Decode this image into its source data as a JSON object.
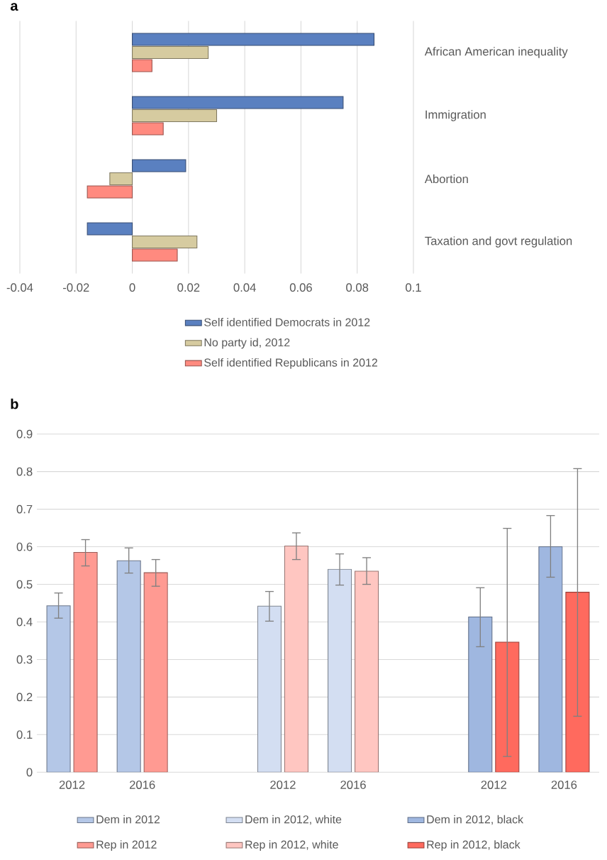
{
  "chart_data": [
    {
      "type": "bar",
      "title": "a",
      "orientation": "horizontal",
      "categories": [
        "African American inequality",
        "Immigration",
        "Abortion",
        "Taxation and govt regulation"
      ],
      "series": [
        {
          "name": "Self identified Democrats in 2012",
          "color": "#5a80c0",
          "values": [
            0.086,
            0.075,
            0.019,
            -0.016
          ]
        },
        {
          "name": "No party id, 2012",
          "color": "#d6cba0",
          "values": [
            0.027,
            0.03,
            -0.008,
            0.023
          ]
        },
        {
          "name": "Self identified Republicans in 2012",
          "color": "#ff8a7f",
          "values": [
            0.007,
            0.011,
            -0.016,
            0.016
          ]
        }
      ],
      "xlim": [
        -0.04,
        0.1
      ],
      "xticks": [
        -0.04,
        -0.02,
        0,
        0.02,
        0.04,
        0.06,
        0.08,
        0.1
      ],
      "grid": "x",
      "legend": "bottom"
    },
    {
      "type": "bar",
      "title": "b",
      "categories": [
        "2012",
        "2016",
        null,
        "2012",
        "2016",
        null,
        "2012",
        "2016"
      ],
      "series": [
        {
          "name": "Dem in 2012",
          "color": "#b4c7e7",
          "values": [
            0.443,
            0.563,
            null,
            null,
            null,
            null,
            null,
            null
          ],
          "errors": [
            [
              0.41,
              0.477
            ],
            [
              0.53,
              0.597
            ],
            null,
            null,
            null,
            null,
            null,
            null
          ]
        },
        {
          "name": "Dem in 2012, white",
          "color": "#d3def2",
          "values": [
            null,
            null,
            null,
            0.442,
            0.54,
            null,
            null,
            null
          ],
          "errors": [
            null,
            null,
            null,
            [
              0.402,
              0.481
            ],
            [
              0.498,
              0.581
            ],
            null,
            null,
            null
          ]
        },
        {
          "name": "Dem in 2012, black",
          "color": "#9fb7e0",
          "values": [
            null,
            null,
            null,
            null,
            null,
            null,
            0.413,
            0.6
          ],
          "errors": [
            null,
            null,
            null,
            null,
            null,
            null,
            [
              0.334,
              0.491
            ],
            [
              0.519,
              0.683
            ]
          ]
        },
        {
          "name": "Rep in 2012",
          "color": "#ff9a92",
          "values": [
            0.585,
            0.531,
            null,
            null,
            null,
            null,
            null,
            null
          ],
          "errors": [
            [
              0.549,
              0.619
            ],
            [
              0.495,
              0.566
            ],
            null,
            null,
            null,
            null,
            null,
            null
          ]
        },
        {
          "name": "Rep in 2012, white",
          "color": "#ffc6c1",
          "values": [
            null,
            null,
            null,
            0.602,
            0.535,
            null,
            null,
            null
          ],
          "errors": [
            null,
            null,
            null,
            [
              0.566,
              0.637
            ],
            [
              0.5,
              0.571
            ],
            null,
            null,
            null
          ]
        },
        {
          "name": "Rep in 2012, black",
          "color": "#ff6a5e",
          "values": [
            null,
            null,
            null,
            null,
            null,
            null,
            0.346,
            0.479
          ],
          "errors": [
            null,
            null,
            null,
            null,
            null,
            null,
            [
              0.042,
              0.649
            ],
            [
              0.149,
              0.808
            ]
          ]
        }
      ],
      "ylim": [
        0,
        0.9
      ],
      "yticks": [
        0,
        0.1,
        0.2,
        0.3,
        0.4,
        0.5,
        0.6,
        0.7,
        0.8,
        0.9
      ],
      "grid": "y",
      "legend": "bottom"
    }
  ]
}
